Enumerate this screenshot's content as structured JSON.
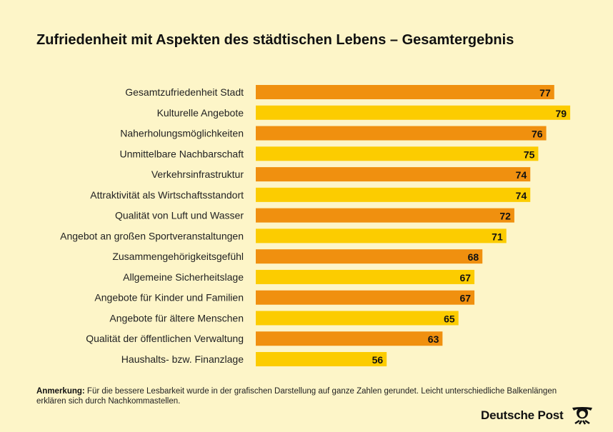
{
  "chart_data": {
    "type": "bar",
    "orientation": "horizontal",
    "title": "Zufriedenheit mit Aspekten des städtischen Lebens – Gesamtergebnis",
    "categories": [
      "Gesamtzufriedenheit Stadt",
      "Kulturelle Angebote",
      "Naherholungsmöglichkeiten",
      "Unmittelbare Nachbarschaft",
      "Verkehrsinfrastruktur",
      "Attraktivität als Wirtschaftsstandort",
      "Qualität von Luft und Wasser",
      "Angebot an großen Sportveranstaltungen",
      "Zusammengehörigkeitsgefühl",
      "Allgemeine Sicherheitslage",
      "Angebote für Kinder und Familien",
      "Angebote für ältere Menschen",
      "Qualität der öffentlichen Verwaltung",
      "Haushalts- bzw. Finanzlage"
    ],
    "values": [
      77,
      79,
      76,
      75,
      74,
      74,
      72,
      71,
      68,
      67,
      67,
      65,
      63,
      56
    ],
    "colors": [
      "#f0900f",
      "#fccc00"
    ],
    "grid": false,
    "data_labels": true
  },
  "note": {
    "label": "Anmerkung:",
    "text": " Für die bessere Lesbarkeit wurde in der grafischen Darstellung auf ganze Zahlen gerundet. Leicht unterschiedliche Balkenlängen erklären sich durch Nachkommastellen."
  },
  "logo": {
    "text": "Deutsche Post"
  },
  "colors": {
    "background": "#fdf5c8",
    "orange": "#f0900f",
    "yellow": "#fccc00"
  }
}
